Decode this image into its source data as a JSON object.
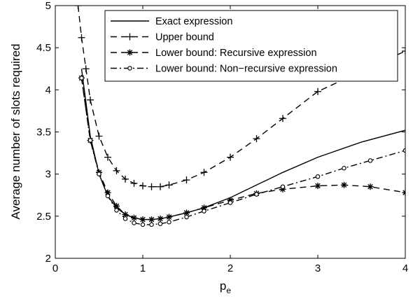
{
  "chart_data": {
    "type": "line",
    "xlabel": "p",
    "xlabel_subscript": "e",
    "ylabel": "Average number of slots required",
    "xlim": [
      0,
      4
    ],
    "ylim": [
      2,
      5
    ],
    "xticks": [
      0,
      1,
      2,
      3,
      4
    ],
    "xtick_labels": [
      "0",
      "1",
      "2",
      "3",
      "4"
    ],
    "yticks": [
      2,
      2.5,
      3,
      3.5,
      4,
      4.5,
      5
    ],
    "ytick_labels": [
      "2",
      "2.5",
      "3",
      "3.5",
      "4",
      "4.5",
      "5"
    ],
    "grid": false,
    "legend_position": "top-right",
    "series": [
      {
        "name": "Exact expression",
        "style": "solid",
        "marker": "none",
        "x": [
          0.3,
          0.35,
          0.4,
          0.5,
          0.6,
          0.7,
          0.8,
          0.9,
          1.0,
          1.1,
          1.2,
          1.3,
          1.5,
          1.7,
          2.0,
          2.3,
          2.6,
          3.0,
          3.5,
          4.0
        ],
        "y": [
          4.25,
          3.85,
          3.45,
          3.0,
          2.74,
          2.6,
          2.52,
          2.48,
          2.46,
          2.46,
          2.47,
          2.49,
          2.54,
          2.6,
          2.72,
          2.87,
          3.02,
          3.2,
          3.38,
          3.52
        ]
      },
      {
        "name": "Upper bound",
        "style": "dashed",
        "marker": "plus",
        "x": [
          0.26,
          0.3,
          0.35,
          0.4,
          0.5,
          0.6,
          0.7,
          0.8,
          0.9,
          1.0,
          1.1,
          1.2,
          1.3,
          1.5,
          1.7,
          2.0,
          2.3,
          2.6,
          3.0,
          3.5,
          4.0
        ],
        "y": [
          5.0,
          4.62,
          4.25,
          3.88,
          3.45,
          3.2,
          3.04,
          2.94,
          2.89,
          2.86,
          2.85,
          2.85,
          2.87,
          2.93,
          3.02,
          3.2,
          3.42,
          3.66,
          3.98,
          4.22,
          4.46
        ]
      },
      {
        "name": "Lower bound: Recursive expression",
        "style": "dashed",
        "marker": "star",
        "x": [
          0.3,
          0.4,
          0.5,
          0.6,
          0.7,
          0.8,
          0.9,
          1.0,
          1.1,
          1.2,
          1.3,
          1.5,
          1.7,
          2.0,
          2.3,
          2.6,
          3.0,
          3.3,
          3.6,
          4.0
        ],
        "y": [
          4.14,
          3.4,
          3.02,
          2.78,
          2.62,
          2.52,
          2.48,
          2.46,
          2.46,
          2.47,
          2.49,
          2.54,
          2.6,
          2.69,
          2.77,
          2.82,
          2.86,
          2.87,
          2.85,
          2.78
        ]
      },
      {
        "name": "Lower bound: Non−recursive expression",
        "style": "dashdot",
        "marker": "circle",
        "x": [
          0.3,
          0.4,
          0.5,
          0.6,
          0.7,
          0.8,
          0.9,
          1.0,
          1.1,
          1.2,
          1.3,
          1.5,
          1.7,
          2.0,
          2.3,
          2.6,
          3.0,
          3.3,
          3.6,
          4.0
        ],
        "y": [
          4.14,
          3.4,
          3.0,
          2.74,
          2.57,
          2.47,
          2.42,
          2.4,
          2.4,
          2.41,
          2.43,
          2.49,
          2.56,
          2.66,
          2.76,
          2.85,
          2.97,
          3.07,
          3.16,
          3.28
        ]
      }
    ]
  }
}
